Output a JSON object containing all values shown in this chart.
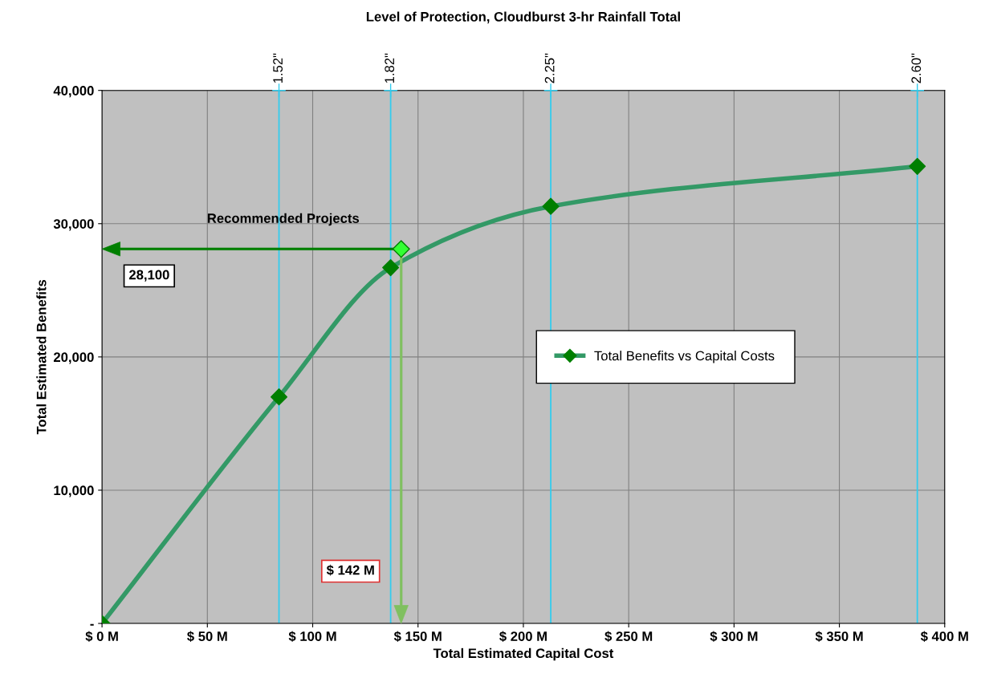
{
  "chart_data": {
    "type": "line",
    "title": "Level of Protection, Cloudburst 3-hr Rainfall Total",
    "xlabel": "Total Estimated Capital Cost",
    "ylabel": "Total Estimated Benefits",
    "series": [
      {
        "name": "Total Benefits vs Capital Costs",
        "color": "#339966",
        "x": [
          0,
          84,
          137,
          213,
          387
        ],
        "values": [
          0,
          17000,
          26700,
          31300,
          34300
        ]
      },
      {
        "type": "scatter",
        "marker": "diamond",
        "color": "#007f00",
        "x": [
          0,
          84,
          137,
          213,
          387
        ],
        "values": [
          0,
          17000,
          26700,
          31300,
          34300
        ]
      },
      {
        "type": "scatter",
        "marker": "diamond",
        "color": "#33ff33",
        "x": [
          142
        ],
        "values": [
          28100
        ]
      }
    ],
    "xlim": [
      0,
      400
    ],
    "xticks": [
      {
        "value": 0,
        "label": "$ 0 M"
      },
      {
        "value": 50,
        "label": "$ 50 M"
      },
      {
        "value": 100,
        "label": "$ 100 M"
      },
      {
        "value": 150,
        "label": "$ 150 M"
      },
      {
        "value": 200,
        "label": "$ 200 M"
      },
      {
        "value": 250,
        "label": "$ 250 M"
      },
      {
        "value": 300,
        "label": "$ 300 M"
      },
      {
        "value": 350,
        "label": "$ 350 M"
      },
      {
        "value": 400,
        "label": "$ 400 M"
      }
    ],
    "ylim": [
      0,
      40000
    ],
    "yticks": [
      {
        "value": 0,
        "label": "-"
      },
      {
        "value": 10000,
        "label": "10,000"
      },
      {
        "value": 20000,
        "label": "20,000"
      },
      {
        "value": 30000,
        "label": "30,000"
      },
      {
        "value": 40000,
        "label": "40,000"
      }
    ],
    "ref_lines": [
      {
        "axis": "x",
        "value": 84,
        "color": "#33ccee"
      },
      {
        "axis": "x",
        "value": 137,
        "color": "#33ccee"
      },
      {
        "axis": "x",
        "value": 213,
        "color": "#33ccee"
      },
      {
        "axis": "x",
        "value": 387,
        "color": "#33ccee"
      }
    ],
    "annotations": [
      "Recommended Projects",
      "28,100",
      "$ 142 M",
      {
        "text": "1.52\"",
        "x": 84,
        "y": 40000
      },
      {
        "text": "1.82\"",
        "x": 137,
        "y": 40000
      },
      {
        "text": "2.25\"",
        "x": 213,
        "y": 40000
      },
      {
        "text": "2.60\"",
        "x": 387,
        "y": 40000
      }
    ],
    "grid": true,
    "legend": "right",
    "line_style": "solid"
  }
}
